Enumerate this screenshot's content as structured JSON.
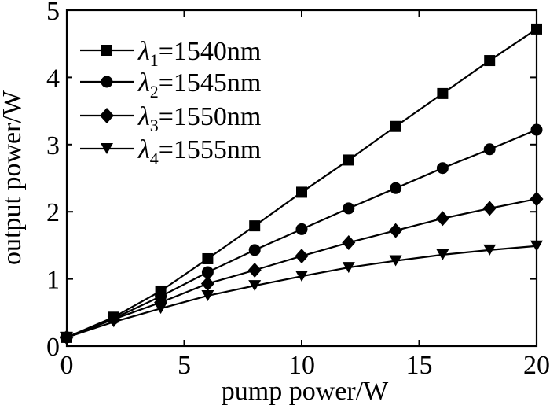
{
  "chart_data": {
    "type": "line",
    "xlabel": "pump power/W",
    "ylabel": "output power/W",
    "xlim": [
      0,
      20
    ],
    "ylim": [
      0,
      5
    ],
    "xticks": [
      0,
      5,
      10,
      15,
      20
    ],
    "yticks": [
      0,
      1,
      2,
      3,
      4,
      5
    ],
    "xtick_labels": [
      "0",
      "5",
      "10",
      "15",
      "20"
    ],
    "ytick_labels": [
      "0",
      "1",
      "2",
      "3",
      "4",
      "5"
    ],
    "x": [
      0,
      2,
      4,
      6,
      8,
      10,
      12,
      14,
      16,
      18,
      20
    ],
    "legend_position": "top-left",
    "grid": false,
    "series": [
      {
        "name": "λ1=1540nm",
        "symbol": "λ",
        "subscript": "1",
        "value_text": "=1540nm",
        "marker": "square",
        "color": "#000000",
        "values": [
          0.13,
          0.43,
          0.82,
          1.3,
          1.79,
          2.29,
          2.77,
          3.27,
          3.76,
          4.25,
          4.72
        ]
      },
      {
        "name": "λ2=1545nm",
        "symbol": "λ",
        "subscript": "2",
        "value_text": "=1545nm",
        "marker": "circle",
        "color": "#000000",
        "values": [
          0.13,
          0.41,
          0.74,
          1.1,
          1.43,
          1.74,
          2.05,
          2.35,
          2.65,
          2.93,
          3.22
        ]
      },
      {
        "name": "λ3=1550nm",
        "symbol": "λ",
        "subscript": "3",
        "value_text": "=1550nm",
        "marker": "diamond",
        "color": "#000000",
        "values": [
          0.13,
          0.4,
          0.65,
          0.93,
          1.13,
          1.34,
          1.54,
          1.72,
          1.9,
          2.05,
          2.19
        ]
      },
      {
        "name": "λ4=1555nm",
        "symbol": "λ",
        "subscript": "4",
        "value_text": "=1555nm",
        "marker": "triangle-down",
        "color": "#000000",
        "values": [
          0.13,
          0.36,
          0.56,
          0.75,
          0.9,
          1.04,
          1.17,
          1.27,
          1.36,
          1.43,
          1.49
        ]
      }
    ]
  }
}
